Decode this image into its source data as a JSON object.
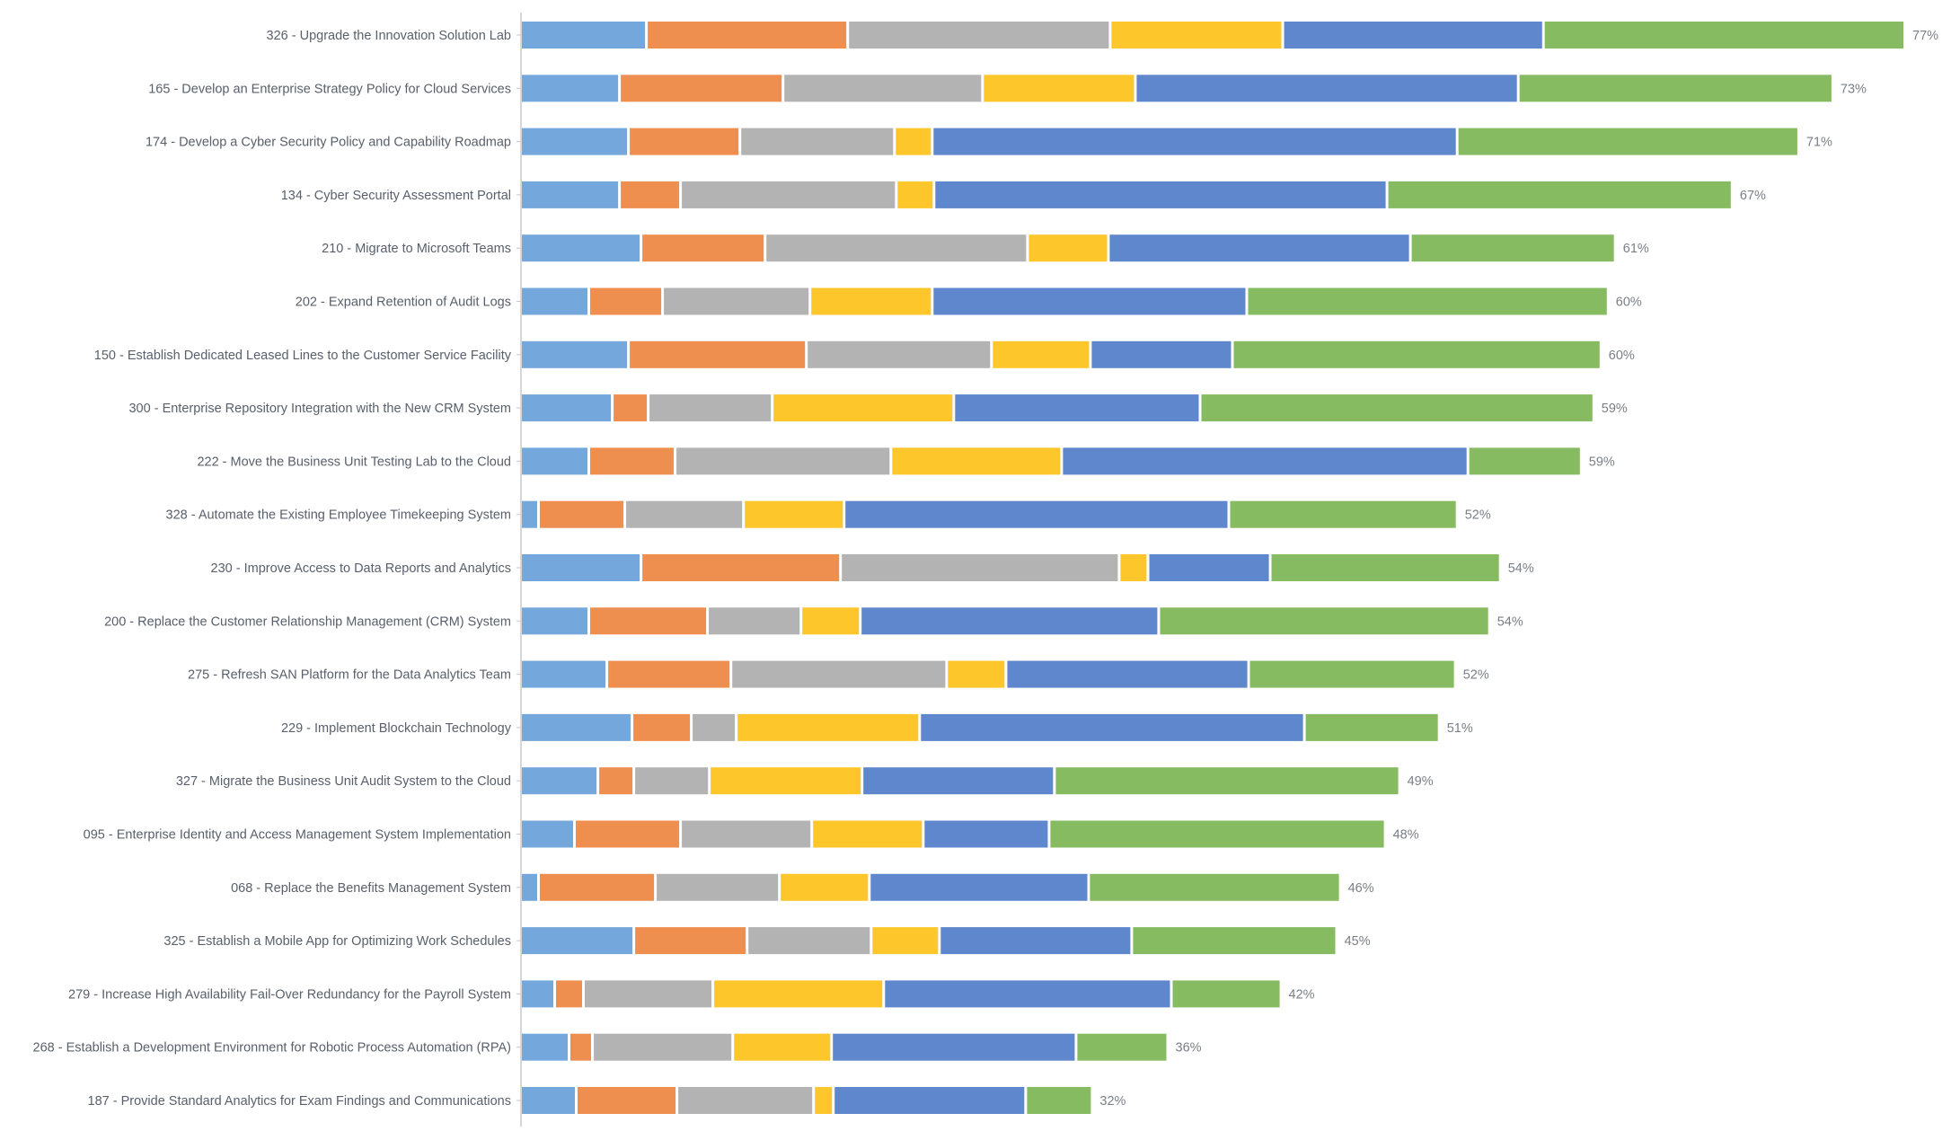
{
  "chart_data": {
    "type": "bar",
    "orientation": "horizontal",
    "stacked": true,
    "legend": "none",
    "grid": false,
    "categories": [
      "326 - Upgrade the Innovation Solution Lab",
      "165 - Develop an Enterprise Strategy Policy for Cloud Services",
      "174 - Develop a Cyber Security Policy and Capability Roadmap",
      "134 - Cyber Security Assessment Portal",
      "210 - Migrate to Microsoft Teams",
      "202 - Expand Retention of Audit Logs",
      "150 - Establish Dedicated Leased Lines to the Customer Service Facility",
      "300 - Enterprise Repository Integration with the New CRM System",
      "222 - Move the Business Unit Testing Lab to the Cloud",
      "328 - Automate the Existing Employee Timekeeping System",
      "230 - Improve Access to Data Reports and Analytics",
      "200 - Replace the Customer Relationship Management (CRM) System",
      "275 - Refresh SAN Platform for the Data Analytics Team",
      "229 - Implement Blockchain Technology",
      "327 - Migrate the Business Unit Audit System to the Cloud",
      "095 - Enterprise Identity and Access Management System Implementation",
      "068 - Replace the Benefits Management System",
      "325 - Establish a Mobile App for Optimizing Work Schedules",
      "279 - Increase High Availability Fail-Over Redundancy for the Payroll System",
      "268 - Establish a Development Environment for Robotic Process Automation (RPA)",
      "187 - Provide Standard Analytics for Exam Findings and Communications"
    ],
    "series": [
      {
        "color": "#74a7db",
        "values": [
          7.0,
          5.5,
          6.0,
          5.5,
          6.7,
          3.8,
          6.0,
          5.1,
          3.8,
          1.0,
          6.7,
          3.8,
          4.8,
          6.2,
          4.3,
          3.0,
          1.0,
          6.3,
          1.9,
          2.7,
          3.1
        ]
      },
      {
        "color": "#ef8f4f",
        "values": [
          11.2,
          9.1,
          6.2,
          3.4,
          6.9,
          4.1,
          9.9,
          2.0,
          4.8,
          4.8,
          11.1,
          6.6,
          6.9,
          3.3,
          2.0,
          5.9,
          6.5,
          6.3,
          1.6,
          1.3,
          5.6
        ]
      },
      {
        "color": "#b3b3b3",
        "values": [
          14.6,
          11.1,
          8.6,
          12.0,
          14.6,
          8.2,
          10.3,
          6.9,
          12.0,
          6.6,
          15.5,
          5.2,
          12.0,
          2.5,
          4.2,
          7.3,
          6.9,
          6.9,
          7.2,
          7.8,
          7.6
        ]
      },
      {
        "color": "#fdc72c",
        "values": [
          9.6,
          8.5,
          2.1,
          2.1,
          4.5,
          6.8,
          5.5,
          10.1,
          9.5,
          5.6,
          1.6,
          3.3,
          3.3,
          10.2,
          8.5,
          6.2,
          5.0,
          3.8,
          9.5,
          5.5,
          1.1
        ]
      },
      {
        "color": "#5f87cd",
        "values": [
          14.5,
          21.3,
          29.2,
          25.2,
          16.8,
          17.5,
          7.9,
          13.7,
          22.6,
          21.4,
          6.8,
          16.6,
          13.5,
          21.4,
          10.7,
          7.0,
          12.2,
          10.7,
          16.0,
          13.6,
          10.7
        ]
      },
      {
        "color": "#87bb61",
        "values": [
          20.1,
          17.5,
          19.0,
          19.2,
          11.4,
          20.1,
          20.5,
          21.9,
          6.3,
          12.7,
          12.8,
          18.4,
          11.5,
          7.5,
          19.2,
          18.7,
          14.0,
          11.4,
          6.1,
          5.1,
          3.7
        ]
      }
    ],
    "totals": [
      "77%",
      "73%",
      "71%",
      "67%",
      "61%",
      "60%",
      "60%",
      "59%",
      "59%",
      "52%",
      "54%",
      "54%",
      "52%",
      "51%",
      "49%",
      "48%",
      "46%",
      "45%",
      "42%",
      "36%",
      "32%"
    ],
    "xlim": [
      0,
      77
    ]
  }
}
